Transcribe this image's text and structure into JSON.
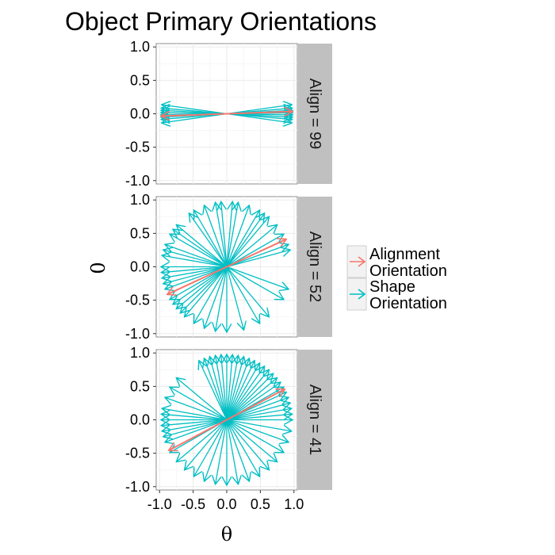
{
  "chart_data": {
    "type": "vector",
    "title": "Object Primary Orientations",
    "xlabel": "θ",
    "ylabel": "0",
    "xlim": [
      -1.05,
      1.05
    ],
    "ylim": [
      -1.05,
      1.05
    ],
    "xticks": [
      "-1.0",
      "-0.5",
      "0.0",
      "0.5",
      "1.0"
    ],
    "yticks": [
      "1.0",
      "0.5",
      "0.0",
      "-0.5",
      "-1.0"
    ],
    "grid": true,
    "legend_position": "right",
    "legend": {
      "items": [
        {
          "label_line1": "Alignment",
          "label_line2": "Orientation",
          "color": "#F8766D"
        },
        {
          "label_line1": "Shape",
          "label_line2": "Orientation",
          "color": "#00BFC4"
        }
      ]
    },
    "panels": [
      {
        "strip": "Align = 99",
        "alignment_angles": [
          2,
          182
        ],
        "shape_angles": [
          -8,
          -5,
          -3,
          -1,
          1,
          3,
          5,
          8,
          172,
          175,
          177,
          179,
          181,
          183,
          185,
          188
        ]
      },
      {
        "strip": "Align = 52",
        "alignment_angles": [
          25,
          205
        ],
        "shape_angles": [
          15,
          20,
          30,
          40,
          50,
          55,
          60,
          70,
          80,
          85,
          95,
          100,
          110,
          120,
          125,
          140,
          145,
          150,
          160,
          165,
          170,
          180,
          185,
          190,
          195,
          200,
          210,
          215,
          220,
          225,
          230,
          240,
          250,
          260,
          270,
          285,
          300,
          310,
          330,
          340
        ]
      },
      {
        "strip": "Align = 41",
        "alignment_angles": [
          28,
          208
        ],
        "shape_angles": [
          0,
          5,
          10,
          15,
          20,
          25,
          30,
          35,
          40,
          45,
          50,
          55,
          60,
          65,
          70,
          75,
          80,
          85,
          90,
          95,
          100,
          105,
          110,
          115,
          140,
          150,
          160,
          170,
          175,
          180,
          185,
          190,
          195,
          200,
          210,
          220,
          230,
          240,
          250,
          260,
          270,
          280,
          290,
          300,
          310,
          320,
          330,
          340,
          350
        ]
      }
    ]
  }
}
